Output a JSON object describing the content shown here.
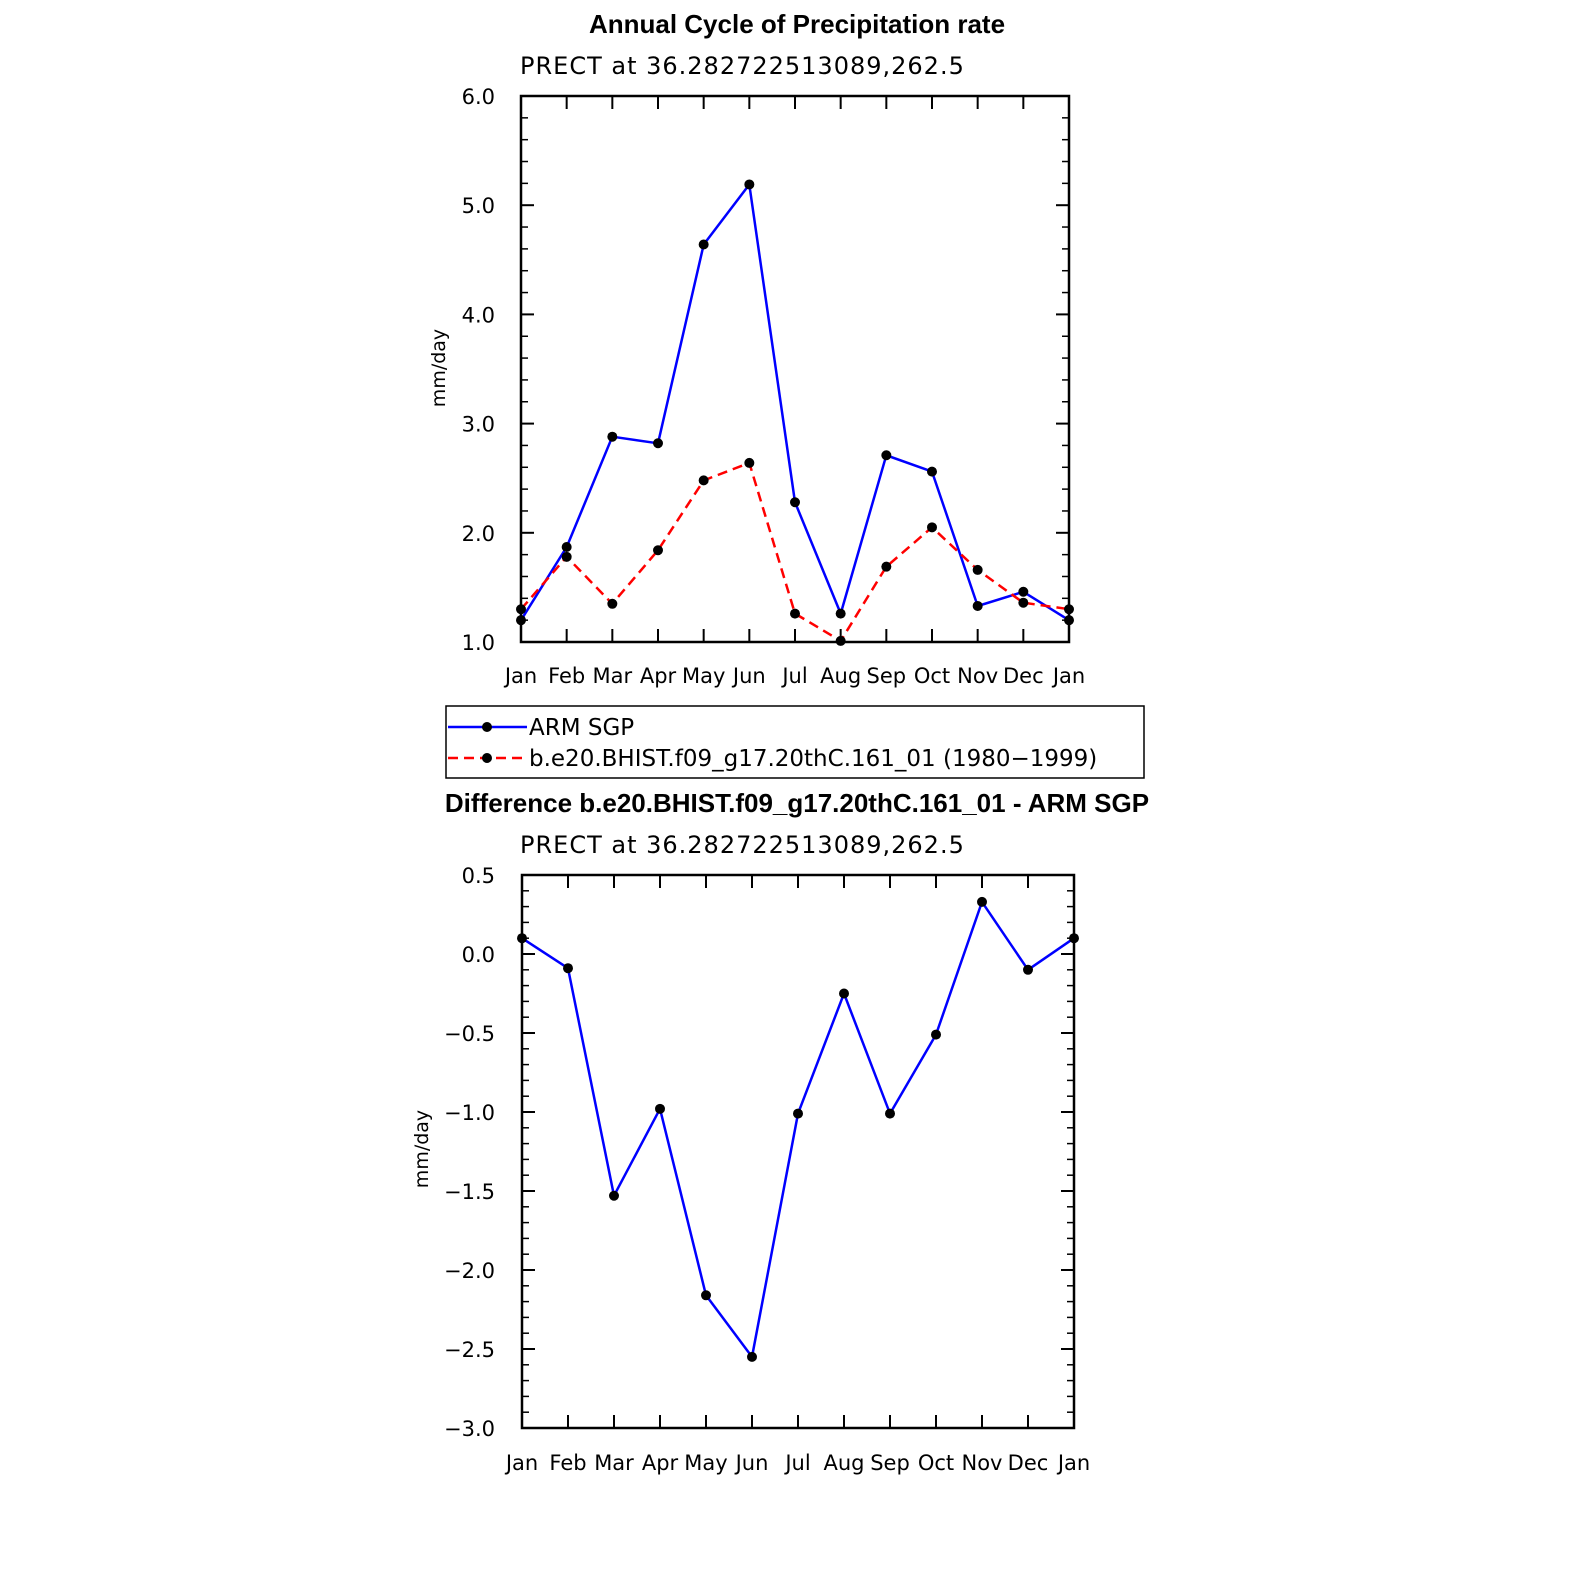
{
  "chart_data": [
    {
      "type": "line",
      "title": "Annual Cycle of Precipitation rate",
      "subtitle": "PRECT  at  36.282722513089,262.5",
      "ylabel": "mm/day",
      "xlabel": "",
      "categories": [
        "Jan",
        "Feb",
        "Mar",
        "Apr",
        "May",
        "Jun",
        "Jul",
        "Aug",
        "Sep",
        "Oct",
        "Nov",
        "Dec",
        "Jan"
      ],
      "ylim": [
        1.0,
        6.0
      ],
      "yticks": [
        1.0,
        2.0,
        3.0,
        4.0,
        5.0,
        6.0
      ],
      "ytick_labels": [
        "1.0",
        "2.0",
        "3.0",
        "4.0",
        "5.0",
        "6.0"
      ],
      "series": [
        {
          "name": "ARM SGP",
          "color": "#0000ff",
          "dash": "solid",
          "values": [
            1.2,
            1.87,
            2.88,
            2.82,
            4.64,
            5.19,
            2.28,
            1.26,
            2.71,
            2.56,
            1.33,
            1.46,
            1.2
          ]
        },
        {
          "name": "b.e20.BHIST.f09_g17.20thC.161_01  (1980−1999)",
          "color": "#ff0000",
          "dash": "dashed",
          "values": [
            1.3,
            1.78,
            1.35,
            1.84,
            2.48,
            2.64,
            1.26,
            1.01,
            1.69,
            2.05,
            1.66,
            1.36,
            1.3
          ]
        }
      ],
      "legend": {
        "entries": [
          "ARM  SGP",
          "b.e20.BHIST.f09_g17.20thC.161_01  (1980−1999)"
        ],
        "placement": "below"
      }
    },
    {
      "type": "line",
      "title": "Difference b.e20.BHIST.f09_g17.20thC.161_01 - ARM SGP",
      "subtitle": "PRECT  at  36.282722513089,262.5",
      "ylabel": "mm/day",
      "xlabel": "",
      "categories": [
        "Jan",
        "Feb",
        "Mar",
        "Apr",
        "May",
        "Jun",
        "Jul",
        "Aug",
        "Sep",
        "Oct",
        "Nov",
        "Dec",
        "Jan"
      ],
      "ylim": [
        -3.0,
        0.5
      ],
      "yticks": [
        -3.0,
        -2.5,
        -2.0,
        -1.5,
        -1.0,
        -0.5,
        0.0,
        0.5
      ],
      "ytick_labels": [
        "−3.0",
        "−2.5",
        "−2.0",
        "−1.5",
        "−1.0",
        "−0.5",
        "0.0",
        "0.5"
      ],
      "series": [
        {
          "name": "Difference",
          "color": "#0000ff",
          "dash": "solid",
          "values": [
            0.1,
            -0.09,
            -1.53,
            -0.98,
            -2.16,
            -2.55,
            -1.01,
            -0.25,
            -1.01,
            -0.51,
            0.33,
            -0.1,
            0.1
          ]
        }
      ]
    }
  ]
}
